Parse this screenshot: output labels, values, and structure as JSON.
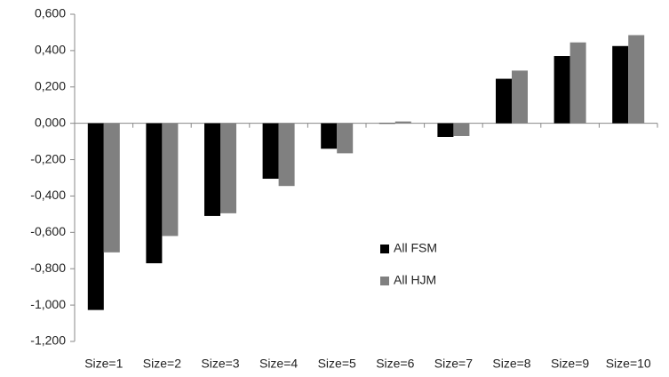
{
  "chart_data": {
    "type": "bar",
    "categories": [
      "Size=1",
      "Size=2",
      "Size=3",
      "Size=4",
      "Size=5",
      "Size=6",
      "Size=7",
      "Size=8",
      "Size=9",
      "Size=10"
    ],
    "series": [
      {
        "name": "All FSM",
        "color": "#000000",
        "values": [
          -1.027,
          -0.77,
          -0.51,
          -0.305,
          -0.14,
          0,
          -0.075,
          0.245,
          0.37,
          0.425
        ]
      },
      {
        "name": "All HJM",
        "color": "#808080",
        "values": [
          -0.71,
          -0.62,
          -0.495,
          -0.345,
          -0.165,
          0.01,
          -0.07,
          0.29,
          0.445,
          0.485
        ]
      }
    ],
    "ylim": [
      -1.2,
      0.6
    ],
    "yticks": [
      {
        "value": -1.2,
        "label": "-1,200"
      },
      {
        "value": -1.0,
        "label": "-1,000"
      },
      {
        "value": -0.8,
        "label": "-0,800"
      },
      {
        "value": -0.6,
        "label": "-0,600"
      },
      {
        "value": -0.4,
        "label": "-0,400"
      },
      {
        "value": -0.2,
        "label": "-0,200"
      },
      {
        "value": 0,
        "label": "0,000"
      },
      {
        "value": 0.2,
        "label": "0,200"
      },
      {
        "value": 0.4,
        "label": "0,400"
      },
      {
        "value": 0.6,
        "label": "0,600"
      }
    ],
    "grid": false,
    "legend": "center"
  }
}
